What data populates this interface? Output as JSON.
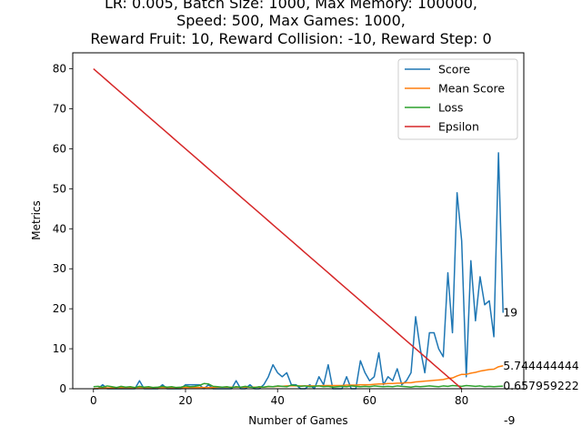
{
  "chart_data": {
    "type": "line",
    "title_lines": [
      "LR: 0.005, Batch Size: 1000, Max Memory: 100000,",
      "Speed: 500, Max Games: 1000,",
      "Reward Fruit: 10, Reward Collision: -10, Reward Step: 0"
    ],
    "xlabel": "Number of Games",
    "ylabel": "Metrics",
    "xlim": [
      -4.5,
      93.5
    ],
    "ylim": [
      0,
      84
    ],
    "xticks": [
      0,
      20,
      40,
      60,
      80
    ],
    "yticks": [
      0,
      10,
      20,
      30,
      40,
      50,
      60,
      70,
      80
    ],
    "legend_position": "top-right",
    "extra_label": "-9",
    "end_labels": [
      "19",
      "5.744444444",
      "0.657959222"
    ],
    "series": [
      {
        "name": "Score",
        "color": "#1f77b4",
        "end_label_index": 0,
        "values": [
          0,
          0,
          1,
          0,
          0,
          0,
          0,
          0,
          0,
          0,
          2,
          0,
          0,
          0,
          0,
          1,
          0,
          0,
          0,
          0,
          1,
          1,
          1,
          1,
          0,
          1,
          0,
          0,
          0,
          0,
          0,
          2,
          0,
          0,
          1,
          0,
          0,
          1,
          3,
          6,
          4,
          3,
          4,
          1,
          1,
          0,
          0,
          1,
          0,
          3,
          1,
          6,
          0,
          0,
          0,
          3,
          0,
          0,
          7,
          4,
          2,
          3,
          9,
          1,
          3,
          2,
          5,
          1,
          2,
          4,
          18,
          10,
          4,
          14,
          14,
          10,
          8,
          29,
          14,
          49,
          37,
          3,
          32,
          17,
          28,
          21,
          22,
          13,
          59,
          19
        ]
      },
      {
        "name": "Mean Score",
        "color": "#ff7f0e",
        "end_label_index": 1,
        "values": [
          0,
          0.1,
          0.2,
          0.2,
          0.2,
          0.3,
          0.3,
          0.3,
          0.3,
          0.3,
          0.3,
          0.3,
          0.3,
          0.3,
          0.3,
          0.3,
          0.3,
          0.3,
          0.3,
          0.3,
          0.3,
          0.3,
          0.3,
          0.3,
          0.3,
          0.3,
          0.3,
          0.4,
          0.4,
          0.4,
          0.4,
          0.4,
          0.4,
          0.4,
          0.4,
          0.4,
          0.4,
          0.4,
          0.5,
          0.5,
          0.6,
          0.6,
          0.7,
          0.7,
          0.7,
          0.7,
          0.7,
          0.7,
          0.7,
          0.7,
          0.8,
          0.8,
          0.8,
          0.8,
          0.8,
          0.9,
          0.9,
          0.9,
          1.0,
          1.0,
          1.0,
          1.1,
          1.2,
          1.2,
          1.3,
          1.3,
          1.4,
          1.4,
          1.5,
          1.5,
          1.7,
          1.8,
          1.9,
          2.0,
          2.1,
          2.2,
          2.3,
          2.6,
          2.7,
          3.2,
          3.6,
          3.6,
          3.9,
          4.1,
          4.4,
          4.6,
          4.8,
          4.9,
          5.5,
          5.744444444
        ]
      },
      {
        "name": "Loss",
        "color": "#2ca02c",
        "end_label_index": 2,
        "values": [
          0.5,
          0.6,
          0.4,
          0.7,
          0.5,
          0.3,
          0.6,
          0.4,
          0.5,
          0.3,
          0.6,
          0.4,
          0.5,
          0.3,
          0.4,
          0.6,
          0.4,
          0.5,
          0.3,
          0.4,
          0.7,
          0.5,
          0.6,
          0.8,
          1.3,
          1.2,
          0.6,
          0.5,
          0.4,
          0.5,
          0.3,
          0.5,
          0.4,
          0.6,
          0.4,
          0.3,
          0.5,
          0.4,
          0.6,
          0.5,
          0.7,
          0.6,
          0.5,
          0.9,
          0.8,
          0.6,
          0.7,
          0.5,
          0.6,
          0.7,
          0.5,
          0.6,
          0.4,
          0.5,
          0.6,
          0.5,
          0.7,
          0.6,
          0.5,
          0.6,
          0.5,
          0.7,
          0.6,
          0.5,
          0.6,
          0.5,
          0.7,
          0.6,
          0.5,
          0.4,
          0.6,
          0.5,
          0.6,
          0.7,
          0.6,
          0.5,
          0.7,
          0.6,
          0.8,
          0.7,
          0.6,
          0.8,
          0.7,
          0.6,
          0.7,
          0.5,
          0.6,
          0.5,
          0.6,
          0.657959222
        ]
      },
      {
        "name": "Epsilon",
        "color": "#d62728",
        "end_label_index": null,
        "values": [
          80,
          79,
          78,
          77,
          76,
          75,
          74,
          73,
          72,
          71,
          70,
          69,
          68,
          67,
          66,
          65,
          64,
          63,
          62,
          61,
          60,
          59,
          58,
          57,
          56,
          55,
          54,
          53,
          52,
          51,
          50,
          49,
          48,
          47,
          46,
          45,
          44,
          43,
          42,
          41,
          40,
          39,
          38,
          37,
          36,
          35,
          34,
          33,
          32,
          31,
          30,
          29,
          28,
          27,
          26,
          25,
          24,
          23,
          22,
          21,
          20,
          19,
          18,
          17,
          16,
          15,
          14,
          13,
          12,
          11,
          10,
          9,
          8,
          7,
          6,
          5,
          4,
          3,
          2,
          1,
          0
        ]
      }
    ]
  }
}
